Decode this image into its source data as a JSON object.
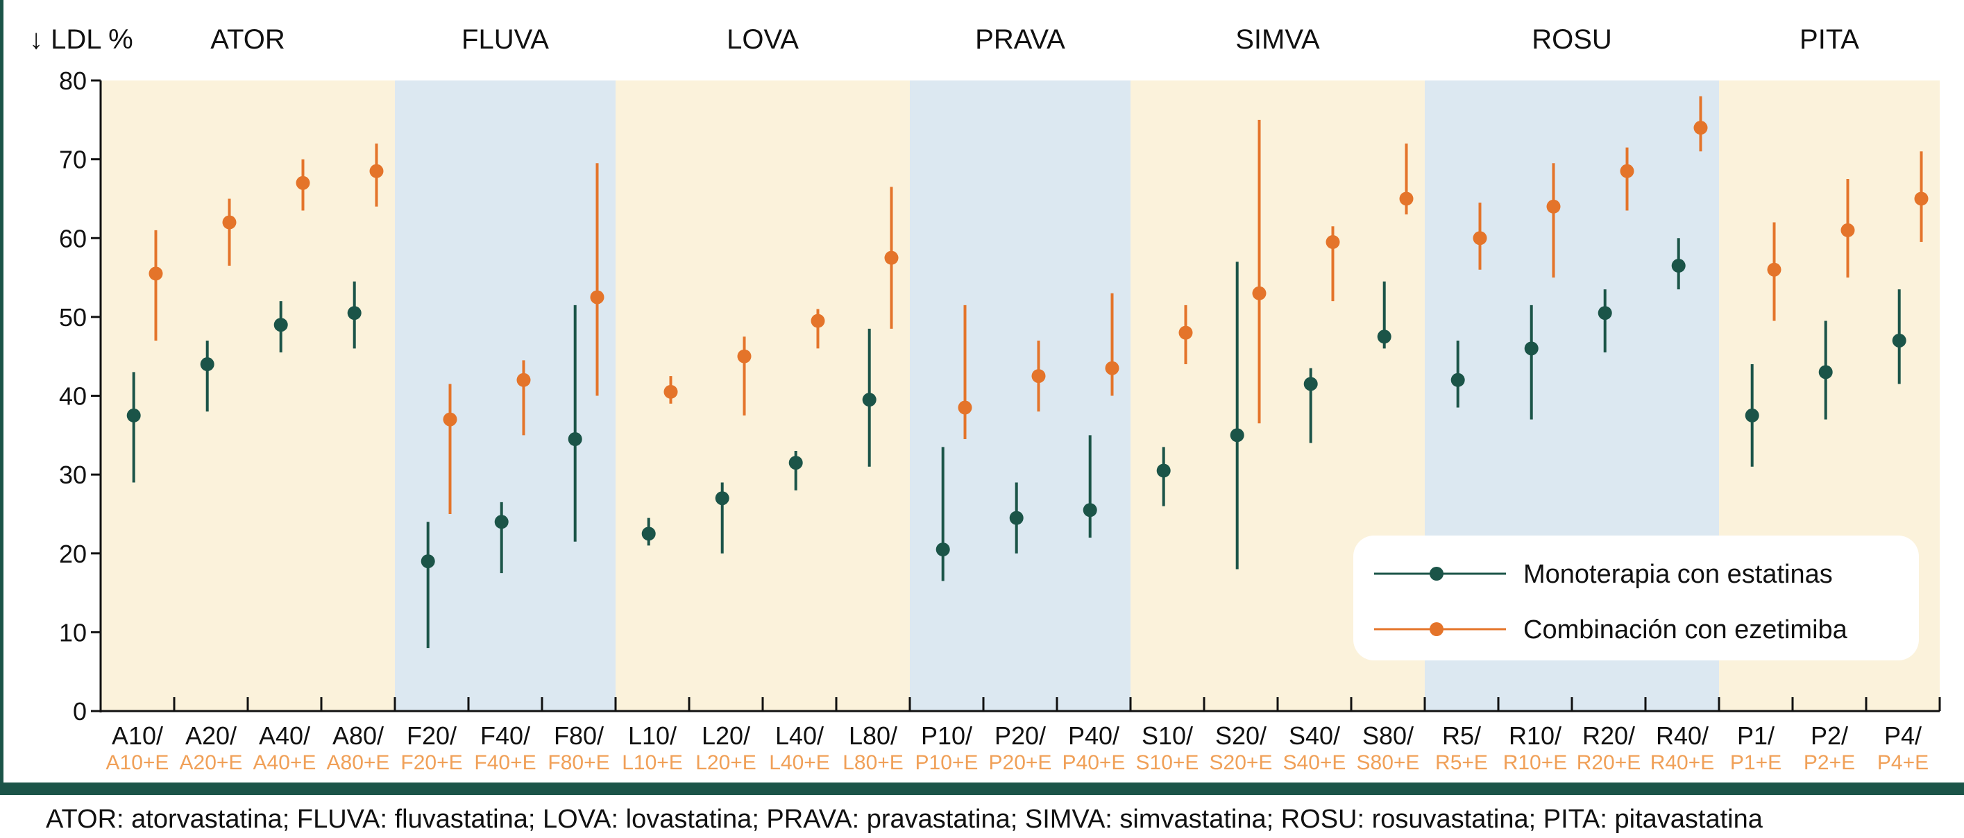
{
  "chart_data": {
    "type": "scatter",
    "subtype": "point-with-error-bars",
    "ylabel": "↓ LDL %",
    "ylim": [
      0,
      80
    ],
    "yticks": [
      0,
      10,
      20,
      30,
      40,
      50,
      60,
      70,
      80
    ],
    "groups": [
      {
        "name": "ATOR",
        "start": 0,
        "end": 4
      },
      {
        "name": "FLUVA",
        "start": 4,
        "end": 7
      },
      {
        "name": "LOVA",
        "start": 7,
        "end": 11
      },
      {
        "name": "PRAVA",
        "start": 11,
        "end": 14
      },
      {
        "name": "SIMVA",
        "start": 14,
        "end": 18
      },
      {
        "name": "ROSU",
        "start": 18,
        "end": 22
      },
      {
        "name": "PITA",
        "start": 22,
        "end": 25
      }
    ],
    "categories": [
      "A10/",
      "A20/",
      "A40/",
      "A80/",
      "F20/",
      "F40/",
      "F80/",
      "L10/",
      "L20/",
      "L40/",
      "L80/",
      "P10/",
      "P20/",
      "P40/",
      "S10/",
      "S20/",
      "S40/",
      "S80/",
      "R5/",
      "R10/",
      "R20/",
      "R40/",
      "P1/",
      "P2/",
      "P4/"
    ],
    "categories_combo": [
      "A10+E",
      "A20+E",
      "A40+E",
      "A80+E",
      "F20+E",
      "F40+E",
      "F80+E",
      "L10+E",
      "L20+E",
      "L40+E",
      "L80+E",
      "P10+E",
      "P20+E",
      "P40+E",
      "S10+E",
      "S20+E",
      "S40+E",
      "S80+E",
      "R5+E",
      "R10+E",
      "R20+E",
      "R40+E",
      "P1+E",
      "P2+E",
      "P4+E"
    ],
    "series": [
      {
        "name": "Monoterapia con estatinas",
        "color": "#1b5448",
        "values": [
          37.5,
          44,
          49,
          50.5,
          19,
          24,
          34.5,
          22.5,
          27,
          31.5,
          39.5,
          20.5,
          24.5,
          25.5,
          30.5,
          35,
          41.5,
          47.5,
          42,
          46,
          50.5,
          56.5,
          37.5,
          43,
          47
        ],
        "low": [
          29,
          38,
          45.5,
          46,
          8,
          17.5,
          21.5,
          21,
          20,
          28,
          31,
          16.5,
          20,
          22,
          26,
          18,
          34,
          46,
          38.5,
          37,
          45.5,
          53.5,
          31,
          37,
          41.5
        ],
        "high": [
          43,
          47,
          52,
          54.5,
          24,
          26.5,
          51.5,
          24.5,
          29,
          33,
          48.5,
          33.5,
          29,
          35,
          33.5,
          57,
          43.5,
          54.5,
          47,
          51.5,
          53.5,
          60,
          44,
          49.5,
          53.5
        ]
      },
      {
        "name": "Combinación con ezetimiba",
        "color": "#e4742a",
        "values": [
          55.5,
          62,
          67,
          68.5,
          37,
          42,
          52.5,
          40.5,
          45,
          49.5,
          57.5,
          38.5,
          42.5,
          43.5,
          48,
          53,
          59.5,
          65,
          60,
          64,
          68.5,
          74,
          56,
          61,
          65
        ],
        "low": [
          47,
          56.5,
          63.5,
          64,
          25,
          35,
          40,
          39,
          37.5,
          46,
          48.5,
          34.5,
          38,
          40,
          44,
          36.5,
          52,
          63,
          56,
          55,
          63.5,
          71,
          49.5,
          55,
          59.5
        ],
        "high": [
          61,
          65,
          70,
          72,
          41.5,
          44.5,
          69.5,
          42.5,
          47.5,
          51,
          66.5,
          51.5,
          47,
          53,
          51.5,
          75,
          61.5,
          72,
          64.5,
          69.5,
          71.5,
          78,
          62,
          67.5,
          71
        ]
      }
    ],
    "legend_position": "bottom-right",
    "band_colors": [
      "#fbf2db",
      "#dce8f1"
    ],
    "combo_label_color": "#f0a058"
  },
  "footnote": "ATOR: atorvastatina; FLUVA: fluvastatina; LOVA: lovastatina; PRAVA: pravastatina; SIMVA: simvastatina; ROSU: rosuvastatina; PITA: pitavastatina"
}
